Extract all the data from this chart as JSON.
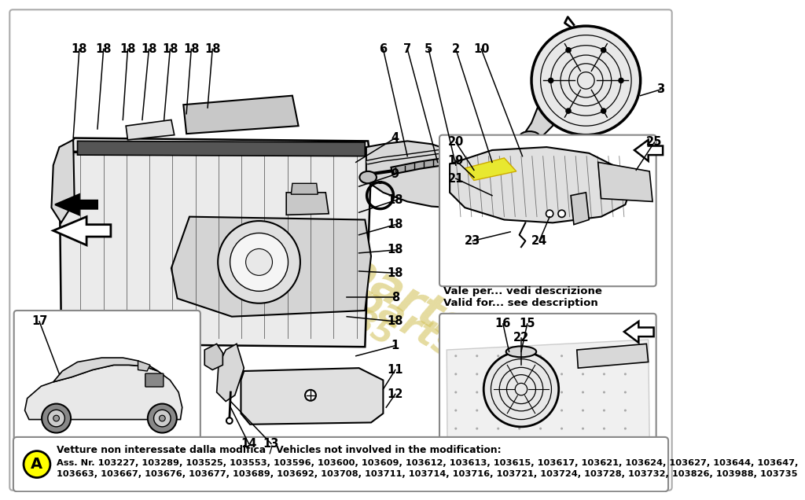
{
  "bg_color": "#ffffff",
  "watermark_color": "#d4c460",
  "bottom_box": {
    "label_A": "A",
    "label_A_bg": "#ffff00",
    "text_bold": "Vetture non interessate dalla modifica / Vehicles not involved in the modification:",
    "line1": "Ass. Nr. 103227, 103289, 103525, 103553, 103596, 103600, 103609, 103612, 103613, 103615, 103617, 103621, 103624, 103627, 103644, 103647,",
    "line2": "103663, 103667, 103676, 103677, 103689, 103692, 103708, 103711, 103714, 103716, 103721, 103724, 103728, 103732, 103826, 103988, 103735"
  },
  "note_valid": "Vale per... vedi descrizione\nValid for... see description"
}
